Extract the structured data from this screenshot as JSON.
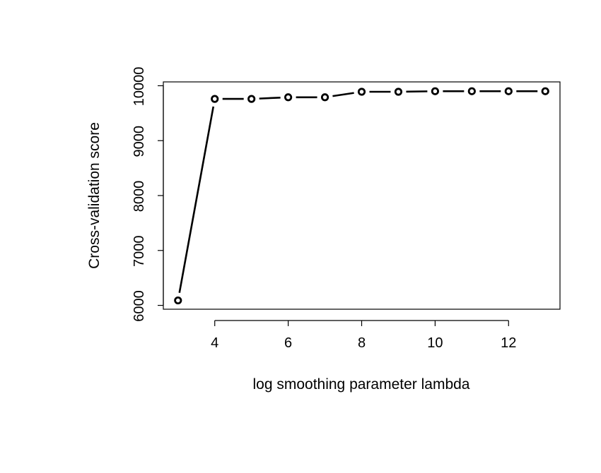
{
  "chart_data": {
    "type": "line",
    "title": "",
    "xlabel": "log smoothing parameter lambda",
    "ylabel": "Cross-validation score",
    "xlim": [
      2.6,
      13.4
    ],
    "ylim": [
      5930,
      10070
    ],
    "xticks": [
      4,
      6,
      8,
      10,
      12
    ],
    "yticks": [
      6000,
      7000,
      8000,
      9000,
      10000
    ],
    "grid": false,
    "legend": "none",
    "series": [
      {
        "x": [
          3,
          4,
          5,
          6,
          7,
          8,
          9,
          10,
          11,
          12,
          13
        ],
        "y": [
          6090,
          9760,
          9760,
          9790,
          9790,
          9890,
          9890,
          9900,
          9900,
          9900,
          9900
        ]
      }
    ],
    "colors": {
      "line": "#000000",
      "marker": "#000000",
      "axes": "#000000"
    }
  }
}
